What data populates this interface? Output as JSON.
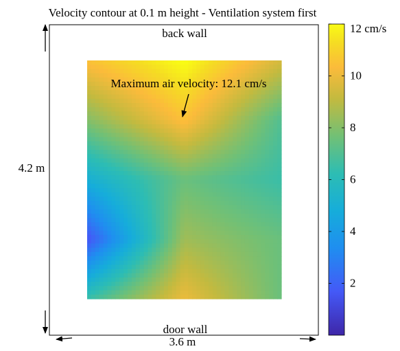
{
  "chart_data": {
    "type": "heatmap",
    "title": "Velocity contour at 0.1 m height - Ventilation system first",
    "labels": {
      "top": "back wall",
      "bottom": "door wall",
      "height": "4.2 m",
      "width": "3.6 m"
    },
    "annotation": "Maximum air velocity: 12.1 cm/s",
    "colorbar": {
      "range": [
        0,
        12
      ],
      "ticks": [
        {
          "value": 12,
          "label": "12 cm/s"
        },
        {
          "value": 10,
          "label": "10"
        },
        {
          "value": 8,
          "label": "8"
        },
        {
          "value": 6,
          "label": "6"
        },
        {
          "value": 4,
          "label": "4"
        },
        {
          "value": 2,
          "label": "2"
        }
      ],
      "colormap": "parula"
    },
    "field": {
      "x_samples": [
        0,
        0.5,
        1
      ],
      "y_samples": [
        0,
        0.25,
        0.5,
        0.75,
        1
      ],
      "values": [
        [
          10.5,
          12.1,
          9.5
        ],
        [
          8.0,
          10.5,
          7.0
        ],
        [
          5.0,
          7.5,
          6.5
        ],
        [
          1.5,
          8.5,
          7.5
        ],
        [
          6.5,
          10.0,
          7.5
        ]
      ]
    }
  }
}
